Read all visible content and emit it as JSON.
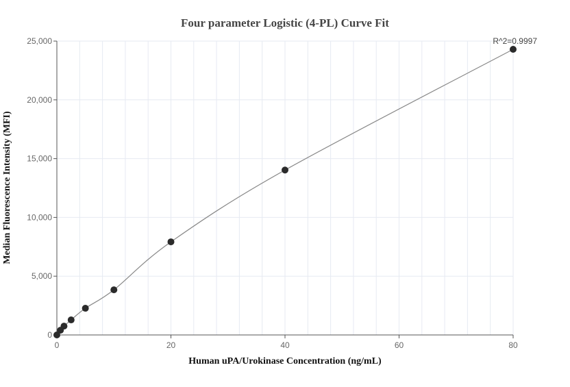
{
  "chart_data": {
    "type": "scatter",
    "title": "Four parameter Logistic (4-PL) Curve Fit",
    "xlabel": "Human uPA/Urokinase Concentration (ng/mL)",
    "ylabel": "Median Fluorescence Intensity (MFI)",
    "xlim": [
      0,
      80
    ],
    "ylim": [
      0,
      25000
    ],
    "x_ticks": [
      "0",
      "20",
      "40",
      "60",
      "80"
    ],
    "y_ticks": [
      "0",
      "5,000",
      "10,000",
      "15,000",
      "20,000",
      "25,000"
    ],
    "grid": true,
    "annotation": "R^2=0.9997",
    "points": {
      "x": [
        0,
        0.625,
        1.25,
        2.5,
        5,
        10,
        20,
        40,
        80
      ],
      "y": [
        0,
        400,
        750,
        1280,
        2270,
        3840,
        7920,
        14030,
        24300
      ]
    },
    "fit_curve": "4-PL",
    "colors": {
      "points": "#2b2b2b",
      "curve": "#888888",
      "grid": "#e6eaf2"
    }
  }
}
